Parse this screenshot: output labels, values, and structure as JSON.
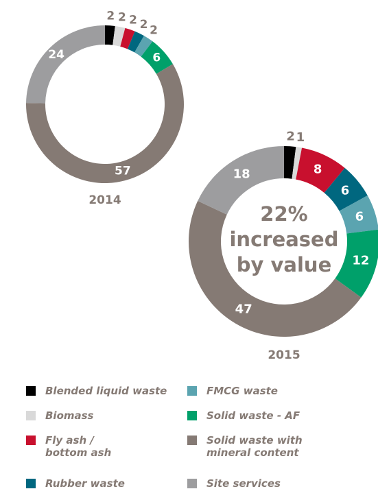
{
  "chart_data": [
    {
      "type": "pie",
      "title": "2014",
      "values": [
        2,
        2,
        2,
        2,
        2,
        6,
        57,
        24
      ]
    },
    {
      "type": "pie",
      "title": "2015",
      "values": [
        2,
        1,
        8,
        6,
        6,
        12,
        47,
        18
      ],
      "annotation": [
        "22%",
        "increased",
        "by value"
      ]
    }
  ],
  "legend": {
    "categories": [
      "Blended liquid waste",
      "Biomass",
      "Fly ash /\nbottom ash",
      "Rubber waste",
      "FMCG waste",
      "Solid waste - AF",
      "Solid waste with\nmineral content",
      "Site services"
    ],
    "colors": [
      "#000000",
      "#d9d9d9",
      "#c8102e",
      "#00677f",
      "#5ba4b0",
      "#00a06a",
      "#857a74",
      "#9d9d9f"
    ]
  }
}
